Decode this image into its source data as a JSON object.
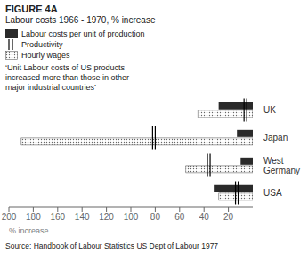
{
  "chart_data": {
    "type": "bar",
    "orientation": "horizontal",
    "title": "FIGURE 4A",
    "subtitle": "Labour costs 1966 - 1970, % increase",
    "categories": [
      "UK",
      "Japan",
      "West\nGermany",
      "USA"
    ],
    "series": [
      {
        "name": "Labour costs per unit of production",
        "color": "#2a2a2a",
        "values": [
          28,
          13,
          10,
          32
        ]
      },
      {
        "name": "Productivity",
        "type": "scatter",
        "marker": "line",
        "color": "#000000",
        "values": [
          5,
          80,
          35,
          12
        ]
      },
      {
        "name": "Hourly wages",
        "color": "#666666",
        "line_style": "dotted",
        "values": [
          45,
          190,
          55,
          28
        ]
      }
    ],
    "xlim": [
      200,
      0
    ],
    "xticks": [
      200,
      180,
      160,
      140,
      120,
      100,
      80,
      60,
      40,
      20
    ],
    "xlabel": "% increase",
    "annotations": [
      "‘Unit Labour costs of US products",
      "increased more than those in other",
      "major industrial countries’"
    ],
    "source": "Source: Handbook of Labour Statistics US Dept of Labour 1977"
  }
}
